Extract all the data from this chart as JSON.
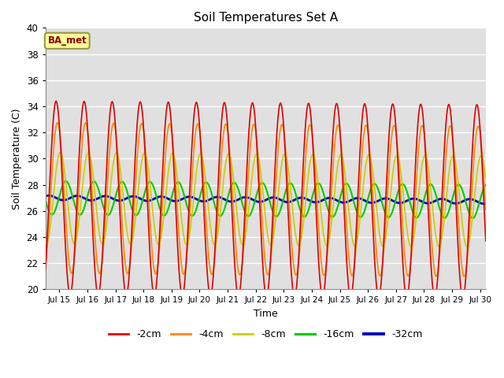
{
  "title": "Soil Temperatures Set A",
  "xlabel": "Time",
  "ylabel": "Soil Temperature (C)",
  "ylim": [
    20,
    40
  ],
  "xlim_days": [
    14.5,
    30.2
  ],
  "xtick_days": [
    15,
    16,
    17,
    18,
    19,
    20,
    21,
    22,
    23,
    24,
    25,
    26,
    27,
    28,
    29,
    30
  ],
  "xtick_labels": [
    "Jul 15",
    "Jul 16",
    "Jul 17",
    "Jul 18",
    "Jul 19",
    "Jul 20",
    "Jul 21",
    "Jul 22",
    "Jul 23",
    "Jul 24",
    "Jul 25",
    "Jul 26",
    "Jul 27",
    "Jul 28",
    "Jul 29",
    "Jul 30"
  ],
  "ytick_labels": [
    20,
    22,
    24,
    26,
    28,
    30,
    32,
    34,
    36,
    38,
    40
  ],
  "bg_color": "#e0e0e0",
  "fig_color": "#ffffff",
  "grid_color": "#ffffff",
  "annotation_text": "BA_met",
  "annotation_bg": "#ffff99",
  "annotation_border": "#999944",
  "series_colors": [
    "#dd0000",
    "#ff8800",
    "#cccc00",
    "#00cc00",
    "#0000bb"
  ],
  "series_labels": [
    "-2cm",
    "-4cm",
    "-8cm",
    "-16cm",
    "-32cm"
  ],
  "series_lw": [
    1.2,
    1.2,
    1.2,
    1.5,
    2.0
  ],
  "depths_cm": [
    2,
    4,
    8,
    16,
    32
  ],
  "base_temp": 27.0,
  "surface_amp": 9.5,
  "decay_scale": 8.0,
  "phase_lag_per_cm": 0.025,
  "trend_slope": -0.018,
  "npoints": 3000
}
